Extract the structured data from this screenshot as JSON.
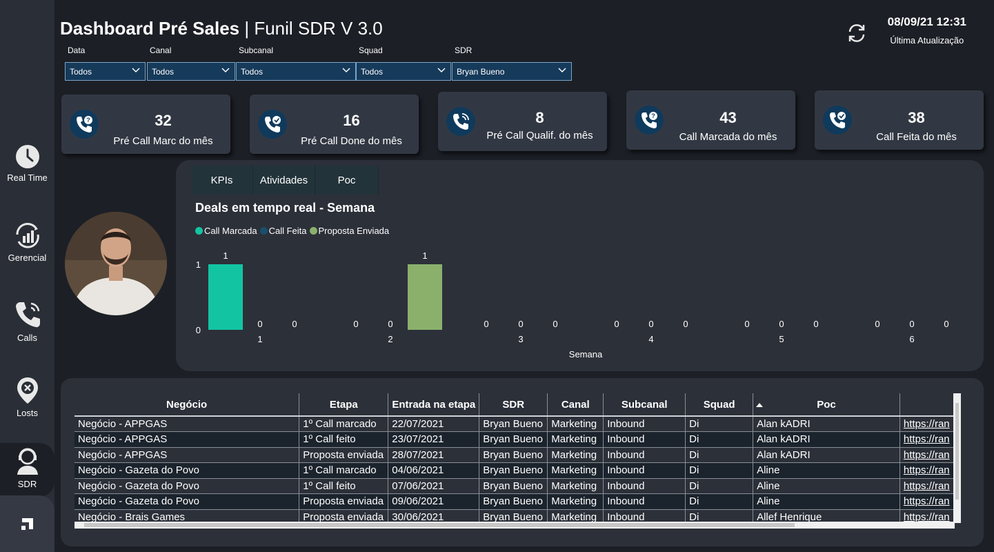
{
  "header": {
    "title_bold": "Dashboard Pré Sales",
    "title_sep": " | ",
    "title_thin": "Funil SDR V 3.0",
    "update_datetime": "08/09/21 12:31",
    "update_label": "Última Atualização"
  },
  "filters": [
    {
      "label": "Data",
      "value": "Todos"
    },
    {
      "label": "Canal",
      "value": "Todos"
    },
    {
      "label": "Subcanal",
      "value": "Todos"
    },
    {
      "label": "Squad",
      "value": "Todos"
    },
    {
      "label": "SDR",
      "value": "Bryan Bueno"
    }
  ],
  "sidebar": {
    "items": [
      {
        "label": "Real Time",
        "icon": "clock-icon"
      },
      {
        "label": "Gerencial",
        "icon": "growth-chart-icon"
      },
      {
        "label": "Calls",
        "icon": "phone-icon"
      },
      {
        "label": "Losts",
        "icon": "location-x-icon"
      },
      {
        "label": "SDR",
        "icon": "agent-headset-icon"
      }
    ]
  },
  "kpis": [
    {
      "value": "32",
      "label": "Pré Call Marc do mês",
      "icon": "phone-question-icon"
    },
    {
      "value": "16",
      "label": "Pré Call Done do mês",
      "icon": "phone-check-icon"
    },
    {
      "value": "8",
      "label": "Pré Call Qualif. do mês",
      "icon": "phone-ring-icon"
    },
    {
      "value": "43",
      "label": "Call Marcada do mês",
      "icon": "phone-question-icon"
    },
    {
      "value": "38",
      "label": "Call Feita do mês",
      "icon": "phone-check-icon"
    }
  ],
  "tabs": [
    "KPIs",
    "Atividades",
    "Poc"
  ],
  "colors": {
    "call_marcada": "#13c4a3",
    "call_feita": "#1a4e6e",
    "proposta_enviada": "#8ab06c",
    "filter_bg": "#163a5a"
  },
  "chart_data": {
    "type": "bar",
    "title": "Deals em tempo real - Semana",
    "xlabel": "Semana",
    "ylabel": "",
    "categories": [
      "1",
      "2",
      "3",
      "4",
      "5",
      "6"
    ],
    "series": [
      {
        "name": "Call Marcada",
        "values": [
          1,
          0,
          0,
          0,
          0,
          0
        ]
      },
      {
        "name": "Call Feita",
        "values": [
          0,
          0,
          0,
          0,
          0,
          0
        ]
      },
      {
        "name": "Proposta Enviada",
        "values": [
          0,
          1,
          0,
          0,
          0,
          0
        ]
      }
    ],
    "y_ticks": [
      "0",
      "1"
    ],
    "ylim": [
      0,
      1
    ],
    "legend_position": "top-left"
  },
  "table": {
    "columns": [
      "Negócio",
      "Etapa",
      "Entrada na etapa",
      "SDR",
      "Canal",
      "Subcanal",
      "Squad",
      "Poc",
      ""
    ],
    "rows": [
      [
        "Negócio - APPGAS",
        "1º Call marcado",
        "22/07/2021",
        "Bryan Bueno",
        "Marketing",
        "Inbound",
        "Di",
        "Alan kADRI",
        "https://ran"
      ],
      [
        "Negócio - APPGAS",
        "1º Call feito",
        "23/07/2021",
        "Bryan Bueno",
        "Marketing",
        "Inbound",
        "Di",
        "Alan kADRI",
        "https://ran"
      ],
      [
        "Negócio - APPGAS",
        "Proposta enviada",
        "28/07/2021",
        "Bryan Bueno",
        "Marketing",
        "Inbound",
        "Di",
        "Alan kADRI",
        "https://ran"
      ],
      [
        "Negócio - Gazeta do Povo",
        "1º Call marcado",
        "04/06/2021",
        "Bryan Bueno",
        "Marketing",
        "Inbound",
        "Di",
        "Aline",
        "https://ran"
      ],
      [
        "Negócio - Gazeta do Povo",
        "1º Call feito",
        "07/06/2021",
        "Bryan Bueno",
        "Marketing",
        "Inbound",
        "Di",
        "Aline",
        "https://ran"
      ],
      [
        "Negócio - Gazeta do Povo",
        "Proposta enviada",
        "09/06/2021",
        "Bryan Bueno",
        "Marketing",
        "Inbound",
        "Di",
        "Aline",
        "https://ran"
      ],
      [
        "Negócio - Brais Games",
        "Proposta enviada",
        "30/06/2021",
        "Bryan Bueno",
        "Marketing",
        "Inbound",
        "Di",
        "Allef Henrique",
        "https://ran"
      ]
    ]
  }
}
